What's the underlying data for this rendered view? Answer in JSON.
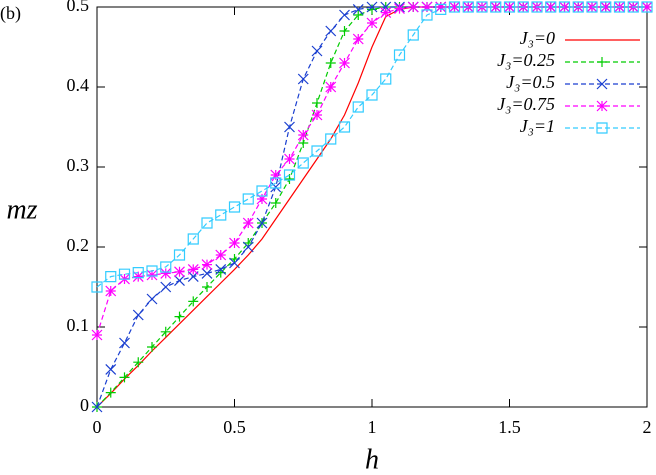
{
  "chart_data": {
    "type": "line",
    "panel_label": "(b)",
    "x_label": "h",
    "y_label": "mz",
    "xlim": [
      0,
      2
    ],
    "ylim": [
      0,
      0.5
    ],
    "xticks": [
      0,
      0.5,
      1,
      1.5,
      2
    ],
    "yticks": [
      0,
      0.1,
      0.2,
      0.3,
      0.4,
      0.5
    ],
    "legend": "upper-right",
    "x": [
      0,
      0.05,
      0.1,
      0.15,
      0.2,
      0.25,
      0.3,
      0.35,
      0.4,
      0.45,
      0.5,
      0.55,
      0.6,
      0.65,
      0.7,
      0.75,
      0.8,
      0.85,
      0.9,
      0.95,
      1,
      1.05,
      1.1,
      1.15,
      1.2,
      1.25,
      1.3,
      1.35,
      1.4,
      1.45,
      1.5,
      1.55,
      1.6,
      1.65,
      1.7,
      1.75,
      1.8,
      1.85,
      1.9,
      1.95,
      2
    ],
    "series": [
      {
        "name": "J₃=0",
        "color": "#ff0000",
        "marker": "none",
        "dashed": false,
        "values": [
          0,
          0.017,
          0.035,
          0.052,
          0.07,
          0.087,
          0.104,
          0.121,
          0.138,
          0.155,
          0.172,
          0.19,
          0.21,
          0.235,
          0.26,
          0.285,
          0.31,
          0.335,
          0.365,
          0.405,
          0.45,
          0.488,
          0.497,
          0.5,
          0.5,
          0.5,
          0.5,
          0.5,
          0.5,
          0.5,
          0.5,
          0.5,
          0.5,
          0.5,
          0.5,
          0.5,
          0.5,
          0.5,
          0.5,
          0.5,
          0.5
        ]
      },
      {
        "name": "J₃=0.25",
        "color": "#00cc00",
        "marker": "plus",
        "dashed": true,
        "values": [
          0,
          0.018,
          0.037,
          0.056,
          0.075,
          0.094,
          0.113,
          0.132,
          0.15,
          0.168,
          0.185,
          0.205,
          0.23,
          0.255,
          0.285,
          0.33,
          0.38,
          0.43,
          0.47,
          0.49,
          0.497,
          0.5,
          0.5,
          0.5,
          0.5,
          0.5,
          0.5,
          0.5,
          0.5,
          0.5,
          0.5,
          0.5,
          0.5,
          0.5,
          0.5,
          0.5,
          0.5,
          0.5,
          0.5,
          0.5,
          0.5
        ]
      },
      {
        "name": "J₃=0.5",
        "color": "#1a3fd0",
        "marker": "cross",
        "dashed": true,
        "values": [
          0,
          0.047,
          0.08,
          0.115,
          0.135,
          0.15,
          0.158,
          0.163,
          0.167,
          0.172,
          0.18,
          0.2,
          0.23,
          0.275,
          0.35,
          0.41,
          0.445,
          0.47,
          0.49,
          0.497,
          0.5,
          0.5,
          0.5,
          0.5,
          0.5,
          0.5,
          0.5,
          0.5,
          0.5,
          0.5,
          0.5,
          0.5,
          0.5,
          0.5,
          0.5,
          0.5,
          0.5,
          0.5,
          0.5,
          0.5,
          0.5
        ]
      },
      {
        "name": "J₃=0.75",
        "color": "#ff00ff",
        "marker": "star",
        "dashed": true,
        "values": [
          0.09,
          0.145,
          0.16,
          0.163,
          0.165,
          0.167,
          0.169,
          0.172,
          0.178,
          0.19,
          0.205,
          0.23,
          0.26,
          0.29,
          0.31,
          0.34,
          0.365,
          0.4,
          0.43,
          0.46,
          0.48,
          0.493,
          0.498,
          0.5,
          0.5,
          0.5,
          0.5,
          0.5,
          0.5,
          0.5,
          0.5,
          0.5,
          0.5,
          0.5,
          0.5,
          0.5,
          0.5,
          0.5,
          0.5,
          0.5,
          0.5
        ]
      },
      {
        "name": "J₃=1",
        "color": "#33ccff",
        "marker": "square",
        "dashed": true,
        "values": [
          0.15,
          0.163,
          0.166,
          0.168,
          0.17,
          0.175,
          0.19,
          0.21,
          0.23,
          0.24,
          0.25,
          0.26,
          0.27,
          0.28,
          0.29,
          0.305,
          0.32,
          0.335,
          0.35,
          0.375,
          0.39,
          0.41,
          0.44,
          0.465,
          0.49,
          0.497,
          0.5,
          0.5,
          0.5,
          0.5,
          0.5,
          0.5,
          0.5,
          0.5,
          0.5,
          0.5,
          0.5,
          0.5,
          0.5,
          0.5,
          0.5
        ]
      }
    ]
  }
}
